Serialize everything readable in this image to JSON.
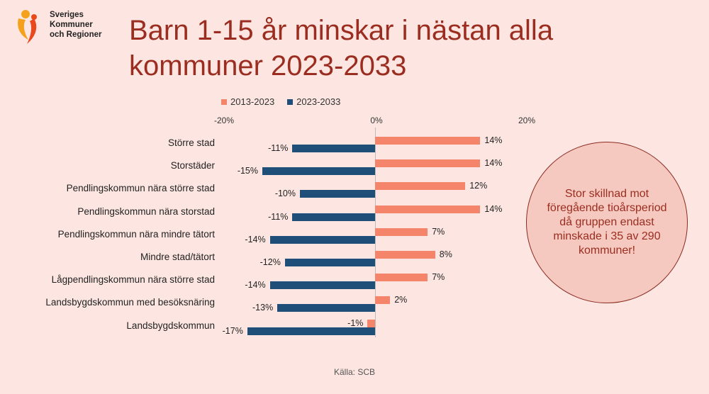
{
  "logo": {
    "line1": "Sveriges",
    "line2": "Kommuner",
    "line3": "och Regioner"
  },
  "title": "Barn 1-15 år minskar i nästan alla kommuner 2023-2033",
  "callout": "Stor skillnad mot föregående tioårsperiod då gruppen endast minskade i 35 av 290 kommuner!",
  "source": "Källa: SCB",
  "colors": {
    "series_2013_2023": "#f4846a",
    "series_2023_2033": "#1f4e79",
    "title": "#9b2d20",
    "background": "#fde6e1"
  },
  "chart_data": {
    "type": "bar",
    "orientation": "horizontal",
    "title": "Barn 1-15 år minskar i nästan alla kommuner 2023-2033",
    "xlabel": "",
    "ylabel": "",
    "xlim": [
      -0.2,
      0.2
    ],
    "x_ticks": [
      "-20%",
      "0%",
      "20%"
    ],
    "legend_position": "top",
    "grid": false,
    "categories": [
      "Större stad",
      "Storstäder",
      "Pendlingskommun nära större stad",
      "Pendlingskommun nära storstad",
      "Pendlingskommun nära mindre tätort",
      "Mindre stad/tätort",
      "Lågpendlingskommun nära större stad",
      "Landsbygdskommun med besöksnäring",
      "Landsbygdskommun"
    ],
    "series": [
      {
        "name": "2013-2023",
        "values": [
          14,
          14,
          12,
          14,
          7,
          8,
          7,
          2,
          -1
        ],
        "labels": [
          "14%",
          "14%",
          "12%",
          "14%",
          "7%",
          "8%",
          "7%",
          "2%",
          "-1%"
        ]
      },
      {
        "name": "2023-2033",
        "values": [
          -11,
          -15,
          -10,
          -11,
          -14,
          -12,
          -14,
          -13,
          -17
        ],
        "labels": [
          "-11%",
          "-15%",
          "-10%",
          "-11%",
          "-14%",
          "-12%",
          "-14%",
          "-13%",
          "-17%"
        ]
      }
    ],
    "source": "Källa: SCB"
  }
}
